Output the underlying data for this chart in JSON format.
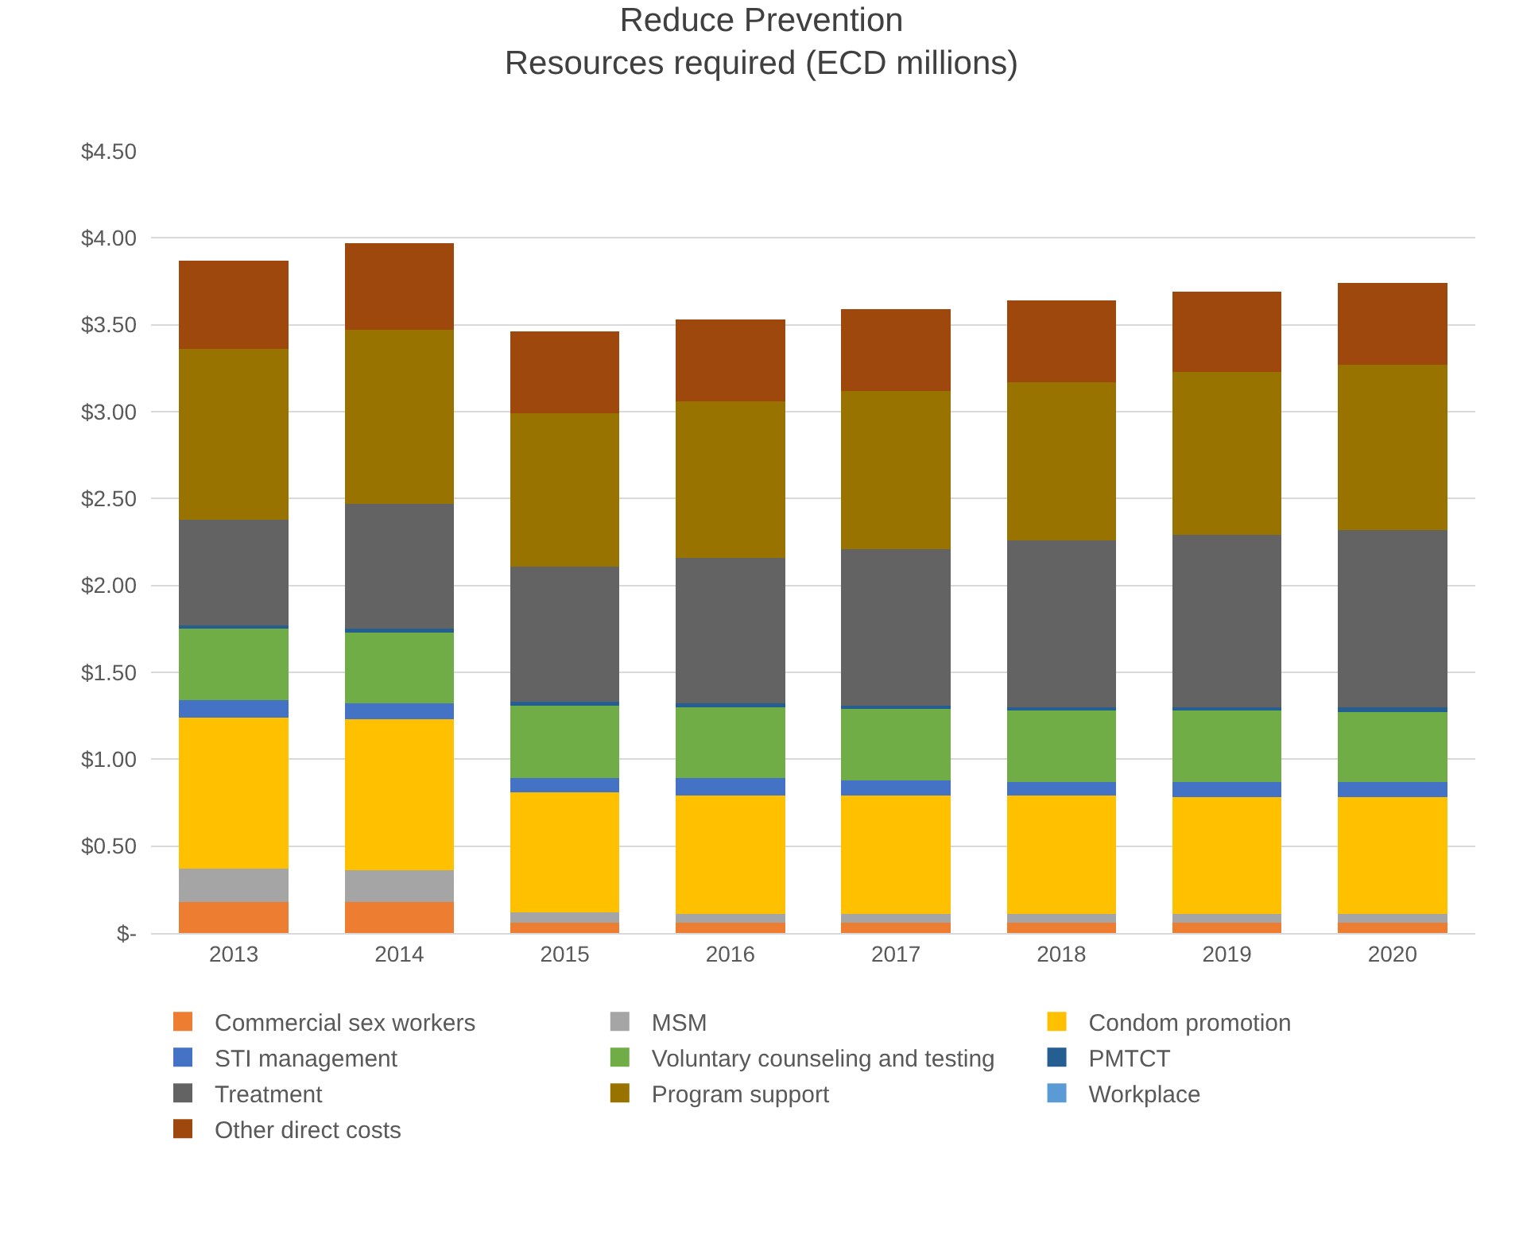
{
  "chart_data": {
    "type": "bar",
    "title": "Reduce Prevention\nResources required (ECD millions)",
    "stacked": true,
    "categories": [
      "2013",
      "2014",
      "2015",
      "2016",
      "2017",
      "2018",
      "2019",
      "2020"
    ],
    "series": [
      {
        "name": "Commercial sex workers",
        "color": "#ed7d31",
        "values": [
          0.18,
          0.18,
          0.06,
          0.06,
          0.06,
          0.06,
          0.06,
          0.06
        ]
      },
      {
        "name": "MSM",
        "color": "#a5a5a5",
        "values": [
          0.19,
          0.18,
          0.06,
          0.05,
          0.05,
          0.05,
          0.05,
          0.05
        ]
      },
      {
        "name": "Condom promotion",
        "color": "#ffc000",
        "values": [
          0.87,
          0.87,
          0.69,
          0.68,
          0.68,
          0.68,
          0.67,
          0.67
        ]
      },
      {
        "name": "STI management",
        "color": "#4472c4",
        "values": [
          0.1,
          0.09,
          0.08,
          0.1,
          0.09,
          0.08,
          0.09,
          0.09
        ]
      },
      {
        "name": "Voluntary counseling and testing",
        "color": "#70ad47",
        "values": [
          0.41,
          0.41,
          0.42,
          0.41,
          0.41,
          0.41,
          0.41,
          0.4
        ]
      },
      {
        "name": "PMTCT",
        "color": "#255e91",
        "values": [
          0.02,
          0.02,
          0.02,
          0.02,
          0.02,
          0.02,
          0.02,
          0.03
        ]
      },
      {
        "name": "Treatment",
        "color": "#636363",
        "values": [
          0.61,
          0.72,
          0.78,
          0.84,
          0.9,
          0.96,
          0.99,
          1.02
        ]
      },
      {
        "name": "Program support",
        "color": "#997300",
        "values": [
          0.98,
          1.0,
          0.88,
          0.9,
          0.91,
          0.91,
          0.94,
          0.95
        ]
      },
      {
        "name": "Workplace",
        "color": "#5b9bd5",
        "values": [
          0,
          0,
          0,
          0,
          0,
          0,
          0,
          0
        ]
      },
      {
        "name": "Other direct costs",
        "color": "#9e480e",
        "values": [
          0.51,
          0.5,
          0.47,
          0.47,
          0.47,
          0.47,
          0.46,
          0.47
        ]
      }
    ],
    "ylim": [
      0,
      4.5
    ],
    "yticks": [
      {
        "value": 0,
        "label": "$-"
      },
      {
        "value": 0.5,
        "label": "$0.50"
      },
      {
        "value": 1,
        "label": "$1.00"
      },
      {
        "value": 1.5,
        "label": "$1.50"
      },
      {
        "value": 2,
        "label": "$2.00"
      },
      {
        "value": 2.5,
        "label": "$2.50"
      },
      {
        "value": 3,
        "label": "$3.00"
      },
      {
        "value": 3.5,
        "label": "$3.50"
      },
      {
        "value": 4,
        "label": "$4.00"
      },
      {
        "value": 4.5,
        "label": "$4.50"
      }
    ],
    "grid": "y",
    "legend": "bottom"
  }
}
